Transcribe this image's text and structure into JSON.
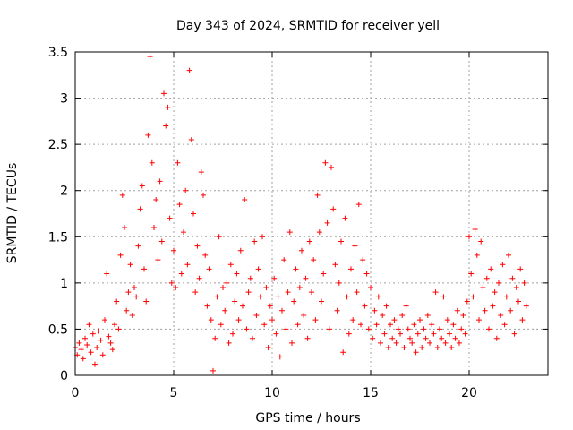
{
  "chart_data": {
    "type": "scatter",
    "title": "Day 343 of 2024, SRMTID for receiver yell",
    "xlabel": "GPS time / hours",
    "ylabel": "SRMTID / TECUs",
    "xlim": [
      0,
      24
    ],
    "ylim": [
      0,
      3.5
    ],
    "xticks": [
      0,
      5,
      10,
      15,
      20
    ],
    "xtick_labels": [
      "0",
      "5",
      "10",
      "15",
      "20"
    ],
    "yticks": [
      0,
      0.5,
      1,
      1.5,
      2,
      2.5,
      3,
      3.5
    ],
    "ytick_labels": [
      "0",
      "0.5",
      "1",
      "1.5",
      "2",
      "2.5",
      "3",
      "3.5"
    ],
    "grid": true,
    "marker": "plus",
    "color": "#ff0000",
    "series": [
      {
        "name": "SRMTID",
        "points": [
          [
            0.0,
            0.3
          ],
          [
            0.1,
            0.22
          ],
          [
            0.2,
            0.35
          ],
          [
            0.3,
            0.28
          ],
          [
            0.4,
            0.18
          ],
          [
            0.5,
            0.4
          ],
          [
            0.6,
            0.33
          ],
          [
            0.7,
            0.55
          ],
          [
            0.8,
            0.25
          ],
          [
            0.9,
            0.45
          ],
          [
            1.0,
            0.12
          ],
          [
            1.1,
            0.3
          ],
          [
            1.2,
            0.48
          ],
          [
            1.3,
            0.38
          ],
          [
            1.4,
            0.22
          ],
          [
            1.5,
            0.6
          ],
          [
            1.6,
            1.1
          ],
          [
            1.7,
            0.42
          ],
          [
            1.8,
            0.35
          ],
          [
            1.9,
            0.28
          ],
          [
            2.0,
            0.55
          ],
          [
            2.1,
            0.8
          ],
          [
            2.2,
            0.5
          ],
          [
            2.3,
            1.3
          ],
          [
            2.4,
            1.95
          ],
          [
            2.5,
            1.6
          ],
          [
            2.6,
            0.7
          ],
          [
            2.7,
            0.9
          ],
          [
            2.8,
            1.2
          ],
          [
            2.9,
            0.65
          ],
          [
            3.0,
            0.95
          ],
          [
            3.1,
            0.85
          ],
          [
            3.2,
            1.4
          ],
          [
            3.3,
            1.8
          ],
          [
            3.4,
            2.05
          ],
          [
            3.5,
            1.15
          ],
          [
            3.6,
            0.8
          ],
          [
            3.7,
            2.6
          ],
          [
            3.8,
            3.45
          ],
          [
            3.9,
            2.3
          ],
          [
            4.0,
            1.6
          ],
          [
            4.1,
            1.9
          ],
          [
            4.2,
            1.25
          ],
          [
            4.3,
            2.1
          ],
          [
            4.4,
            1.45
          ],
          [
            4.5,
            3.05
          ],
          [
            4.6,
            2.7
          ],
          [
            4.7,
            2.9
          ],
          [
            4.8,
            1.7
          ],
          [
            4.9,
            1.0
          ],
          [
            5.0,
            1.35
          ],
          [
            5.1,
            0.95
          ],
          [
            5.2,
            2.3
          ],
          [
            5.3,
            1.85
          ],
          [
            5.4,
            1.1
          ],
          [
            5.5,
            1.55
          ],
          [
            5.6,
            2.0
          ],
          [
            5.7,
            1.2
          ],
          [
            5.8,
            3.3
          ],
          [
            5.9,
            2.55
          ],
          [
            6.0,
            1.75
          ],
          [
            6.1,
            0.9
          ],
          [
            6.2,
            1.4
          ],
          [
            6.3,
            1.05
          ],
          [
            6.4,
            2.2
          ],
          [
            6.5,
            1.95
          ],
          [
            6.6,
            1.3
          ],
          [
            6.7,
            0.75
          ],
          [
            6.8,
            1.15
          ],
          [
            6.9,
            0.6
          ],
          [
            7.0,
            0.05
          ],
          [
            7.1,
            0.4
          ],
          [
            7.2,
            0.85
          ],
          [
            7.3,
            1.5
          ],
          [
            7.4,
            0.55
          ],
          [
            7.5,
            0.95
          ],
          [
            7.6,
            0.7
          ],
          [
            7.7,
            1.0
          ],
          [
            7.8,
            0.35
          ],
          [
            7.9,
            1.2
          ],
          [
            8.0,
            0.45
          ],
          [
            8.1,
            0.8
          ],
          [
            8.2,
            1.1
          ],
          [
            8.3,
            0.6
          ],
          [
            8.4,
            1.35
          ],
          [
            8.5,
            0.75
          ],
          [
            8.6,
            1.9
          ],
          [
            8.7,
            0.5
          ],
          [
            8.8,
            0.9
          ],
          [
            8.9,
            1.05
          ],
          [
            9.0,
            0.4
          ],
          [
            9.1,
            1.45
          ],
          [
            9.2,
            0.65
          ],
          [
            9.3,
            1.15
          ],
          [
            9.4,
            0.85
          ],
          [
            9.5,
            1.5
          ],
          [
            9.6,
            0.55
          ],
          [
            9.7,
            0.95
          ],
          [
            9.8,
            0.3
          ],
          [
            9.9,
            0.75
          ],
          [
            10.0,
            0.6
          ],
          [
            10.1,
            1.05
          ],
          [
            10.2,
            0.45
          ],
          [
            10.3,
            0.85
          ],
          [
            10.4,
            0.2
          ],
          [
            10.5,
            0.7
          ],
          [
            10.6,
            1.25
          ],
          [
            10.7,
            0.5
          ],
          [
            10.8,
            0.9
          ],
          [
            10.9,
            1.55
          ],
          [
            11.0,
            0.35
          ],
          [
            11.1,
            0.8
          ],
          [
            11.2,
            1.15
          ],
          [
            11.3,
            0.55
          ],
          [
            11.4,
            0.95
          ],
          [
            11.5,
            1.35
          ],
          [
            11.6,
            0.65
          ],
          [
            11.7,
            1.05
          ],
          [
            11.8,
            0.4
          ],
          [
            11.9,
            1.45
          ],
          [
            12.0,
            0.9
          ],
          [
            12.1,
            1.25
          ],
          [
            12.2,
            0.6
          ],
          [
            12.3,
            1.95
          ],
          [
            12.4,
            1.55
          ],
          [
            12.5,
            0.8
          ],
          [
            12.6,
            1.1
          ],
          [
            12.7,
            2.3
          ],
          [
            12.8,
            1.65
          ],
          [
            12.9,
            0.5
          ],
          [
            13.0,
            2.25
          ],
          [
            13.1,
            1.8
          ],
          [
            13.2,
            1.2
          ],
          [
            13.3,
            0.7
          ],
          [
            13.4,
            1.0
          ],
          [
            13.5,
            1.45
          ],
          [
            13.6,
            0.25
          ],
          [
            13.7,
            1.7
          ],
          [
            13.8,
            0.85
          ],
          [
            13.9,
            0.45
          ],
          [
            14.0,
            1.15
          ],
          [
            14.1,
            0.6
          ],
          [
            14.2,
            1.4
          ],
          [
            14.3,
            0.9
          ],
          [
            14.4,
            1.85
          ],
          [
            14.5,
            0.55
          ],
          [
            14.6,
            1.25
          ],
          [
            14.7,
            0.75
          ],
          [
            14.8,
            1.1
          ],
          [
            14.9,
            0.5
          ],
          [
            15.0,
            0.95
          ],
          [
            15.1,
            0.4
          ],
          [
            15.2,
            0.7
          ],
          [
            15.3,
            0.55
          ],
          [
            15.4,
            0.85
          ],
          [
            15.5,
            0.35
          ],
          [
            15.6,
            0.65
          ],
          [
            15.7,
            0.45
          ],
          [
            15.8,
            0.75
          ],
          [
            15.9,
            0.3
          ],
          [
            16.0,
            0.55
          ],
          [
            16.1,
            0.4
          ],
          [
            16.2,
            0.6
          ],
          [
            16.3,
            0.35
          ],
          [
            16.4,
            0.5
          ],
          [
            16.5,
            0.45
          ],
          [
            16.6,
            0.65
          ],
          [
            16.7,
            0.3
          ],
          [
            16.8,
            0.75
          ],
          [
            16.9,
            0.5
          ],
          [
            17.0,
            0.4
          ],
          [
            17.1,
            0.35
          ],
          [
            17.2,
            0.55
          ],
          [
            17.3,
            0.25
          ],
          [
            17.4,
            0.45
          ],
          [
            17.5,
            0.6
          ],
          [
            17.6,
            0.3
          ],
          [
            17.7,
            0.5
          ],
          [
            17.8,
            0.4
          ],
          [
            17.9,
            0.65
          ],
          [
            18.0,
            0.35
          ],
          [
            18.1,
            0.55
          ],
          [
            18.2,
            0.45
          ],
          [
            18.3,
            0.9
          ],
          [
            18.4,
            0.3
          ],
          [
            18.5,
            0.5
          ],
          [
            18.6,
            0.4
          ],
          [
            18.7,
            0.85
          ],
          [
            18.8,
            0.35
          ],
          [
            18.9,
            0.6
          ],
          [
            19.0,
            0.45
          ],
          [
            19.1,
            0.3
          ],
          [
            19.2,
            0.55
          ],
          [
            19.3,
            0.4
          ],
          [
            19.4,
            0.7
          ],
          [
            19.5,
            0.35
          ],
          [
            19.6,
            0.5
          ],
          [
            19.7,
            0.65
          ],
          [
            19.8,
            0.45
          ],
          [
            19.9,
            0.8
          ],
          [
            20.0,
            1.5
          ],
          [
            20.1,
            1.1
          ],
          [
            20.2,
            0.85
          ],
          [
            20.3,
            1.58
          ],
          [
            20.4,
            1.3
          ],
          [
            20.5,
            0.6
          ],
          [
            20.6,
            1.45
          ],
          [
            20.7,
            0.95
          ],
          [
            20.8,
            0.7
          ],
          [
            20.9,
            1.05
          ],
          [
            21.0,
            0.5
          ],
          [
            21.1,
            1.15
          ],
          [
            21.2,
            0.75
          ],
          [
            21.3,
            0.9
          ],
          [
            21.4,
            0.4
          ],
          [
            21.5,
            1.0
          ],
          [
            21.6,
            0.65
          ],
          [
            21.7,
            1.2
          ],
          [
            21.8,
            0.55
          ],
          [
            21.9,
            0.85
          ],
          [
            22.0,
            1.3
          ],
          [
            22.1,
            0.7
          ],
          [
            22.2,
            1.05
          ],
          [
            22.3,
            0.45
          ],
          [
            22.4,
            0.95
          ],
          [
            22.5,
            0.8
          ],
          [
            22.6,
            1.15
          ],
          [
            22.7,
            0.6
          ],
          [
            22.8,
            1.0
          ],
          [
            22.9,
            0.75
          ]
        ]
      }
    ]
  }
}
